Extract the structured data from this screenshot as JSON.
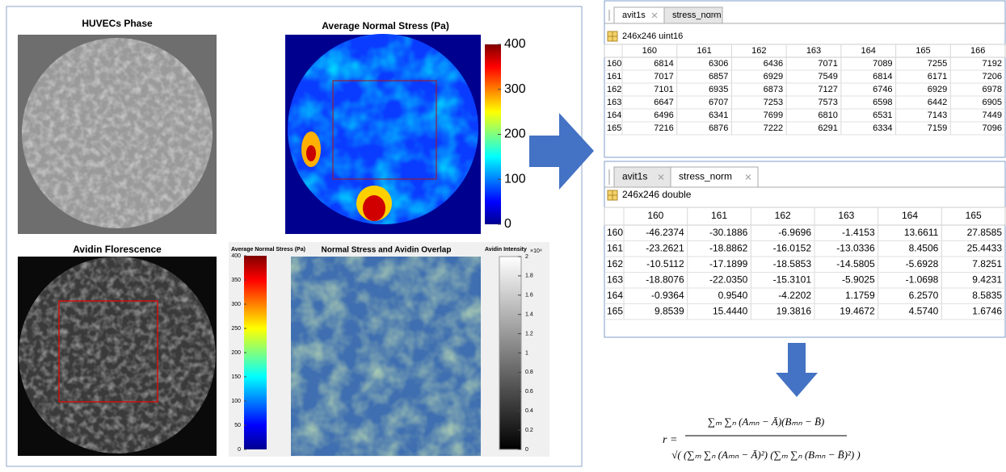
{
  "figure": {
    "phase": {
      "title": "HUVECs Phase"
    },
    "stress": {
      "title": "Average Normal Stress (Pa)",
      "colorbar": {
        "lim": [
          0,
          400
        ],
        "ticks": [
          0,
          100,
          200,
          300,
          400
        ]
      }
    },
    "avidin": {
      "title": "Avidin Florescence"
    },
    "overlap": {
      "title": "Normal Stress and Avidin Overlap",
      "stress_colorbar": {
        "label": "Average Normal Stress (Pa)",
        "lim": [
          0,
          400
        ],
        "ticks": [
          0,
          50,
          100,
          150,
          200,
          250,
          300,
          350,
          400
        ]
      },
      "avidin_colorbar": {
        "label": "Avidin Intensity",
        "multiplier": "×10⁴",
        "lim": [
          0,
          2
        ],
        "ticks": [
          0,
          0.2,
          0.4,
          0.6,
          0.8,
          1,
          1.2,
          1.4,
          1.6,
          1.8,
          2
        ]
      }
    }
  },
  "table_top": {
    "tabs": [
      "avit1s",
      "stress_norm"
    ],
    "active": 0,
    "size": "246x246 uint16",
    "columns": [
      "160",
      "161",
      "162",
      "163",
      "164",
      "165",
      "166"
    ],
    "row_labels": [
      "160",
      "161",
      "162",
      "163",
      "164",
      "165"
    ],
    "cells": [
      [
        "6814",
        "6306",
        "6436",
        "7071",
        "7089",
        "7255",
        "7192"
      ],
      [
        "7017",
        "6857",
        "6929",
        "7549",
        "6814",
        "6171",
        "7206"
      ],
      [
        "7101",
        "6935",
        "6873",
        "7127",
        "6746",
        "6929",
        "6978"
      ],
      [
        "6647",
        "6707",
        "7253",
        "7573",
        "6598",
        "6442",
        "6905"
      ],
      [
        "6496",
        "6341",
        "7699",
        "6810",
        "6531",
        "7143",
        "7449"
      ],
      [
        "7216",
        "6876",
        "7222",
        "6291",
        "6334",
        "7159",
        "7096"
      ]
    ]
  },
  "table_bottom": {
    "tabs": [
      "avit1s",
      "stress_norm"
    ],
    "active": 1,
    "size": "246x246 double",
    "columns": [
      "160",
      "161",
      "162",
      "163",
      "164",
      "165"
    ],
    "row_labels": [
      "160",
      "161",
      "162",
      "163",
      "164",
      "165"
    ],
    "cells": [
      [
        "-46.2374",
        "-30.1886",
        "-6.9696",
        "-1.4153",
        "13.6611",
        "27.8585"
      ],
      [
        "-23.2621",
        "-18.8862",
        "-16.0152",
        "-13.0336",
        "8.4506",
        "25.4433"
      ],
      [
        "-10.5112",
        "-17.1899",
        "-18.5853",
        "-14.5805",
        "-5.6928",
        "7.8251"
      ],
      [
        "-18.8076",
        "-22.0350",
        "-15.3101",
        "-5.9025",
        "-1.0698",
        "9.4231"
      ],
      [
        "-0.9364",
        "0.9540",
        "-4.2202",
        "1.1759",
        "6.2570",
        "8.5835"
      ],
      [
        "9.8539",
        "15.4440",
        "19.3816",
        "19.4672",
        "4.5740",
        "1.6746"
      ]
    ]
  },
  "formula": {
    "lhs": "r =",
    "numerator": "∑ₘ ∑ₙ (Aₘₙ − Ā)(Bₘₙ − B̄)",
    "denominator": "√( (∑ₘ ∑ₙ (Aₘₙ − Ā)²) (∑ₘ ∑ₙ (Bₘₙ − B̄)²) )"
  }
}
